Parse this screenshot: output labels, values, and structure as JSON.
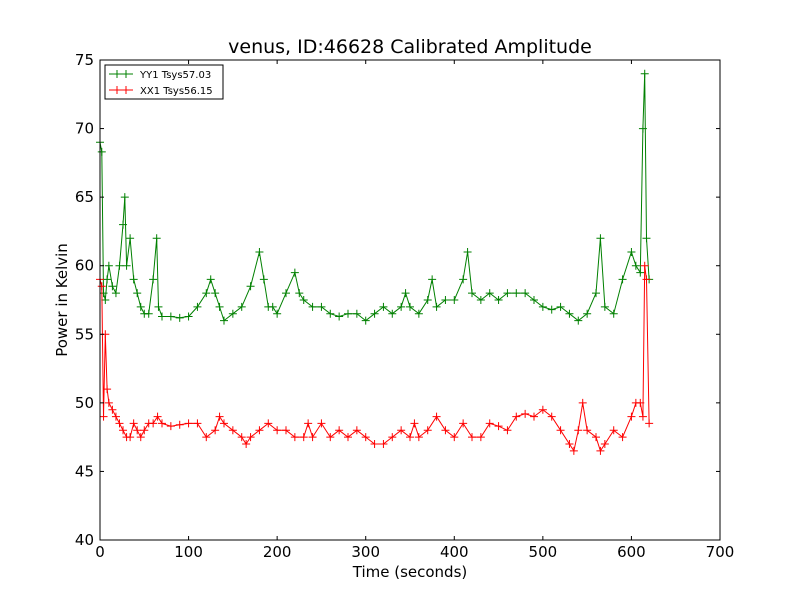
{
  "chart_data": {
    "type": "line",
    "title": "venus, ID:46628 Calibrated Amplitude",
    "xlabel": "Time (seconds)",
    "ylabel": "Power in Kelvin",
    "xlim": [
      0,
      700
    ],
    "ylim": [
      40,
      75
    ],
    "xticks": [
      "0",
      "100",
      "200",
      "300",
      "400",
      "500",
      "600",
      "700"
    ],
    "yticks": [
      "40",
      "45",
      "50",
      "55",
      "60",
      "65",
      "70",
      "75"
    ],
    "grid": false,
    "legend": {
      "placement": "top-left",
      "entries": [
        "YY1 Tsys57.03",
        "XX1 Tsys56.15"
      ]
    },
    "marker": "+",
    "series": [
      {
        "name": "YY1 Tsys57.03",
        "color": "#008000",
        "x": [
          0,
          2,
          4,
          6,
          8,
          10,
          14,
          18,
          22,
          26,
          28,
          30,
          34,
          38,
          42,
          46,
          50,
          55,
          60,
          64,
          66,
          70,
          80,
          90,
          100,
          110,
          120,
          125,
          130,
          135,
          140,
          150,
          160,
          170,
          180,
          185,
          190,
          195,
          200,
          210,
          220,
          225,
          230,
          240,
          250,
          260,
          270,
          280,
          290,
          300,
          310,
          320,
          330,
          340,
          345,
          350,
          360,
          370,
          375,
          380,
          390,
          400,
          410,
          415,
          420,
          430,
          440,
          450,
          460,
          470,
          480,
          490,
          500,
          510,
          520,
          530,
          540,
          550,
          560,
          565,
          570,
          580,
          590,
          600,
          605,
          610,
          613,
          615,
          617,
          620
        ],
        "y": [
          69,
          68.3,
          58,
          57.5,
          59,
          60,
          58.5,
          58,
          60,
          63,
          65,
          60,
          62,
          59,
          58,
          57,
          56.5,
          56.5,
          59,
          62,
          57,
          56.3,
          56.3,
          56.2,
          56.3,
          57,
          58,
          59,
          58,
          57,
          56,
          56.5,
          57,
          58.5,
          61,
          59,
          57,
          57,
          56.5,
          58,
          59.5,
          58,
          57.5,
          57,
          57,
          56.5,
          56.3,
          56.5,
          56.5,
          56,
          56.5,
          57,
          56.5,
          57,
          58,
          57,
          56.5,
          57.5,
          59,
          57,
          57.5,
          57.5,
          59,
          61,
          58,
          57.5,
          58,
          57.5,
          58,
          58,
          58,
          57.5,
          57,
          56.8,
          57,
          56.5,
          56,
          56.5,
          58,
          62,
          57,
          56.5,
          59,
          61,
          60,
          59.5,
          70,
          74,
          62,
          59
        ]
      },
      {
        "name": "XX1 Tsys56.15",
        "color": "#ff0000",
        "x": [
          0,
          2,
          4,
          6,
          8,
          10,
          14,
          18,
          22,
          26,
          30,
          34,
          38,
          42,
          46,
          50,
          55,
          60,
          65,
          70,
          80,
          90,
          100,
          110,
          120,
          130,
          135,
          140,
          150,
          160,
          165,
          170,
          180,
          190,
          200,
          210,
          220,
          230,
          235,
          240,
          250,
          260,
          270,
          280,
          290,
          300,
          310,
          320,
          330,
          340,
          350,
          355,
          360,
          370,
          380,
          390,
          400,
          410,
          420,
          430,
          440,
          450,
          460,
          470,
          480,
          490,
          500,
          510,
          520,
          530,
          535,
          540,
          545,
          550,
          560,
          565,
          570,
          580,
          590,
          600,
          605,
          610,
          613,
          615,
          617,
          620
        ],
        "y": [
          59,
          58.5,
          49,
          55,
          51,
          50,
          49.5,
          49,
          48.5,
          48,
          47.5,
          47.5,
          48.5,
          48,
          47.5,
          48,
          48.5,
          48.5,
          49,
          48.5,
          48.3,
          48.4,
          48.5,
          48.5,
          47.5,
          48,
          49,
          48.5,
          48,
          47.5,
          47,
          47.5,
          48,
          48.5,
          48,
          48,
          47.5,
          47.5,
          48.5,
          47.5,
          48.5,
          47.5,
          48,
          47.5,
          48,
          47.5,
          47,
          47,
          47.5,
          48,
          47.5,
          48.5,
          47.5,
          48,
          49,
          48,
          47.5,
          48.5,
          47.5,
          47.5,
          48.5,
          48.3,
          48,
          49,
          49.2,
          49,
          49.5,
          49,
          48,
          47,
          46.5,
          48,
          50,
          48,
          47.5,
          46.5,
          47,
          48,
          47.5,
          49,
          50,
          50,
          49,
          60,
          59,
          48.5
        ]
      }
    ]
  }
}
